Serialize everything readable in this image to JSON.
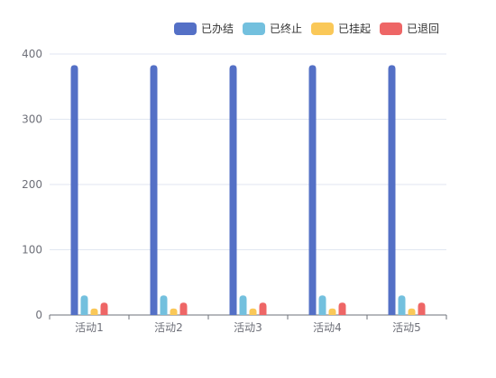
{
  "chart_data": {
    "type": "bar",
    "title": "",
    "xlabel": "",
    "ylabel": "",
    "categories": [
      "活动1",
      "活动2",
      "活动3",
      "活动4",
      "活动5"
    ],
    "ylim": [
      0,
      400
    ],
    "yticks": [
      0,
      100,
      200,
      300,
      400
    ],
    "grid": true,
    "legend_position": "top-right",
    "series": [
      {
        "name": "已办结",
        "color": "#5470c6",
        "values": [
          383,
          383,
          383,
          383,
          383
        ]
      },
      {
        "name": "已终止",
        "color": "#73c0de",
        "values": [
          30,
          30,
          30,
          30,
          30
        ]
      },
      {
        "name": "已挂起",
        "color": "#fac858",
        "values": [
          10,
          10,
          10,
          10,
          10
        ]
      },
      {
        "name": "已退回",
        "color": "#ee6666",
        "values": [
          19,
          19,
          19,
          19,
          19
        ]
      }
    ]
  }
}
